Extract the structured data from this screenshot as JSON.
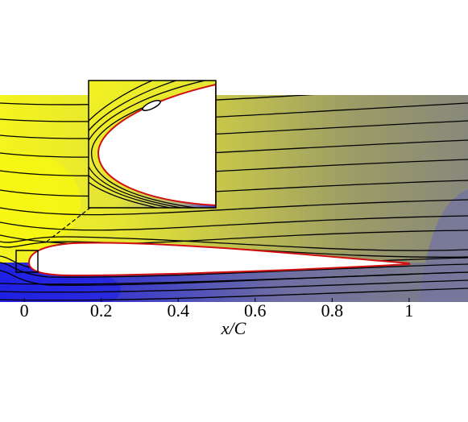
{
  "chart_data": {
    "type": "contour",
    "x_label": "x/C",
    "xlim": [
      -0.063,
      1.153
    ],
    "xticks": [
      0,
      0.2,
      0.4,
      0.6,
      0.8,
      1
    ]
  }
}
